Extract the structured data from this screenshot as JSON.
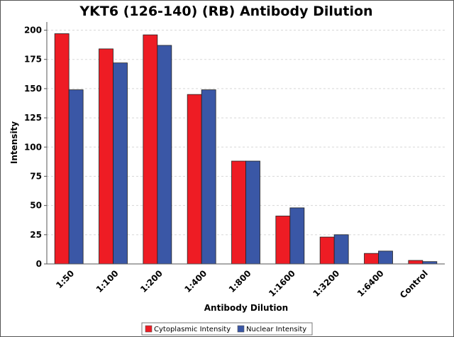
{
  "chart_data": {
    "type": "bar",
    "title": "YKT6 (126-140) (RB) Antibody Dilution",
    "xlabel": "Antibody Dilution",
    "ylabel": "Intensity",
    "ylim": [
      0,
      207
    ],
    "yticks": [
      0,
      25,
      50,
      75,
      100,
      125,
      150,
      175,
      200
    ],
    "grid": true,
    "legend_position": "bottom",
    "categories": [
      "1:50",
      "1:100",
      "1:200",
      "1:400",
      "1:800",
      "1:1600",
      "1:3200",
      "1:6400",
      "Control"
    ],
    "series": [
      {
        "name": "Cytoplasmic Intensity",
        "color": "#ee1c24",
        "values": [
          197,
          184,
          196,
          145,
          88,
          41,
          23,
          9,
          3
        ]
      },
      {
        "name": "Nuclear Intensity",
        "color": "#3a57a6",
        "values": [
          149,
          172,
          187,
          149,
          88,
          48,
          25,
          11,
          2
        ]
      }
    ]
  }
}
